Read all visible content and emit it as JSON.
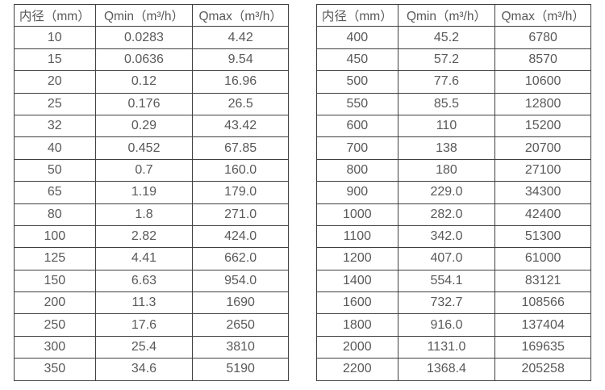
{
  "colors": {
    "background": "#ffffff",
    "border": "#404040",
    "text": "#595959"
  },
  "chart_data": [
    {
      "type": "table",
      "title": "",
      "columns": [
        "内径（mm）",
        "Qmin（m³/h）",
        "Qmax（m³/h）"
      ],
      "rows": [
        [
          "10",
          "0.0283",
          "4.42"
        ],
        [
          "15",
          "0.0636",
          "9.54"
        ],
        [
          "20",
          "0.12",
          "16.96"
        ],
        [
          "25",
          "0.176",
          "26.5"
        ],
        [
          "32",
          "0.29",
          "43.42"
        ],
        [
          "40",
          "0.452",
          "67.85"
        ],
        [
          "50",
          "0.7",
          "160.0"
        ],
        [
          "65",
          "1.19",
          "179.0"
        ],
        [
          "80",
          "1.8",
          "271.0"
        ],
        [
          "100",
          "2.82",
          "424.0"
        ],
        [
          "125",
          "4.41",
          "662.0"
        ],
        [
          "150",
          "6.63",
          "954.0"
        ],
        [
          "200",
          "11.3",
          "1690"
        ],
        [
          "250",
          "17.6",
          "2650"
        ],
        [
          "300",
          "25.4",
          "3810"
        ],
        [
          "350",
          "34.6",
          "5190"
        ]
      ]
    },
    {
      "type": "table",
      "title": "",
      "columns": [
        "内径（mm）",
        "Qmin（m³/h）",
        "Qmax（m³/h）"
      ],
      "rows": [
        [
          "400",
          "45.2",
          "6780"
        ],
        [
          "450",
          "57.2",
          "8570"
        ],
        [
          "500",
          "77.6",
          "10600"
        ],
        [
          "550",
          "85.5",
          "12800"
        ],
        [
          "600",
          "110",
          "15200"
        ],
        [
          "700",
          "138",
          "20700"
        ],
        [
          "800",
          "180",
          "27100"
        ],
        [
          "900",
          "229.0",
          "34300"
        ],
        [
          "1000",
          "282.0",
          "42400"
        ],
        [
          "1100",
          "342.0",
          "51300"
        ],
        [
          "1200",
          "407.0",
          "61000"
        ],
        [
          "1400",
          "554.1",
          "83121"
        ],
        [
          "1600",
          "732.7",
          "108566"
        ],
        [
          "1800",
          "916.0",
          "137404"
        ],
        [
          "2000",
          "1131.0",
          "169635"
        ],
        [
          "2200",
          "1368.4",
          "205258"
        ]
      ]
    }
  ]
}
